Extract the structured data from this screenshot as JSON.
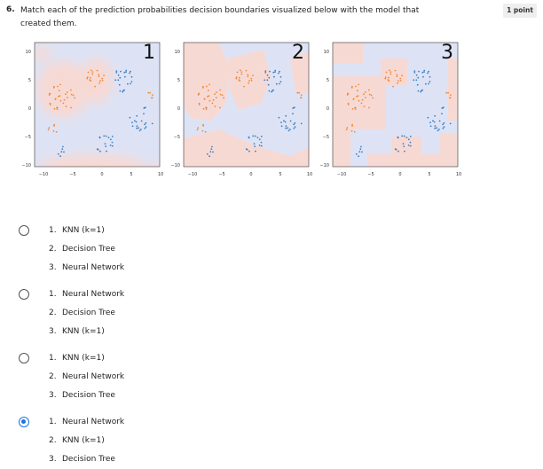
{
  "question": {
    "number": "6.",
    "text": "Match each of the prediction probabilities decision boundaries visualized below with the model that created them.",
    "points": "1 point"
  },
  "plots": [
    {
      "label": "1"
    },
    {
      "label": "2"
    },
    {
      "label": "3"
    }
  ],
  "axis": {
    "x_ticks": [
      "−10",
      "−5",
      "0",
      "5",
      "10"
    ],
    "y_ticks": [
      "10",
      "5",
      "0",
      "−5",
      "−10"
    ]
  },
  "colors": {
    "blue_region": "#dde3f5",
    "red_region": "#f7d9d4",
    "blue_points": "#3a7fc4",
    "orange_points": "#f08a3a",
    "radio_selected": "#1a73e8"
  },
  "options": [
    {
      "selected": false,
      "items": [
        {
          "num": "1.",
          "text": "KNN (k=1)"
        },
        {
          "num": "2.",
          "text": "Decision Tree"
        },
        {
          "num": "3.",
          "text": "Neural Network"
        }
      ]
    },
    {
      "selected": false,
      "items": [
        {
          "num": "1.",
          "text": "Neural Network"
        },
        {
          "num": "2.",
          "text": "Decision Tree"
        },
        {
          "num": "3.",
          "text": "KNN (k=1)"
        }
      ]
    },
    {
      "selected": false,
      "items": [
        {
          "num": "1.",
          "text": "KNN (k=1)"
        },
        {
          "num": "2.",
          "text": "Neural Network"
        },
        {
          "num": "3.",
          "text": "Decision Tree"
        }
      ]
    },
    {
      "selected": true,
      "items": [
        {
          "num": "1.",
          "text": "Neural Network"
        },
        {
          "num": "2.",
          "text": "KNN (k=1)"
        },
        {
          "num": "3.",
          "text": "Decision Tree"
        }
      ]
    }
  ]
}
